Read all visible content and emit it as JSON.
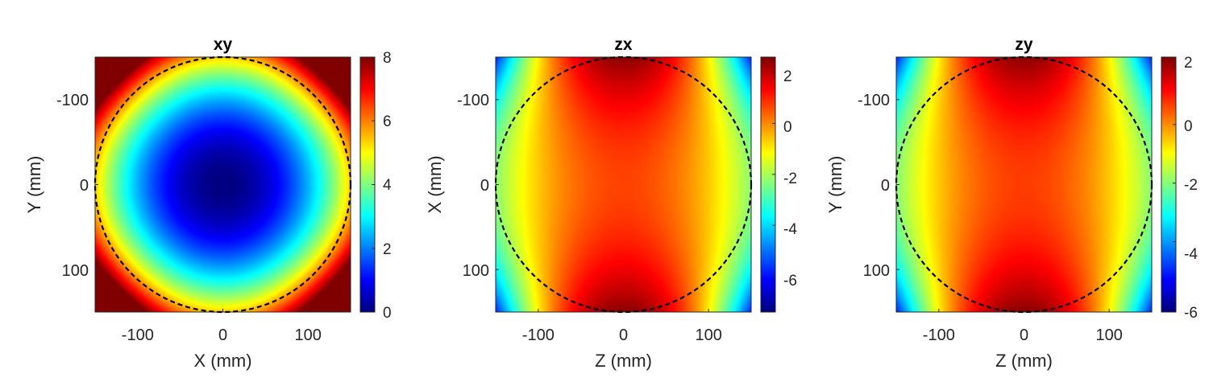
{
  "figure": {
    "background": "#ffffff",
    "colormap": "jet",
    "circle_style": {
      "color": "#000000",
      "dash": "dashed"
    }
  },
  "chart_data": [
    {
      "type": "heatmap",
      "title": "xy",
      "xlabel": "X (mm)",
      "ylabel": "Y (mm)",
      "xlim": [
        -150,
        150
      ],
      "ylim": [
        -150,
        150
      ],
      "y_reversed": true,
      "x_ticks": [
        -100,
        0,
        100
      ],
      "x_tick_labels": [
        "-100",
        "0",
        "100"
      ],
      "y_ticks": [
        -100,
        0,
        100
      ],
      "y_tick_labels": [
        "-100",
        "0",
        "100"
      ],
      "color_range": [
        0,
        8
      ],
      "colorbar_ticks": [
        0,
        2,
        4,
        6,
        8
      ],
      "colorbar_tick_labels": [
        "0",
        "2",
        "4",
        "6",
        "8"
      ],
      "circle": {
        "center": [
          0,
          0
        ],
        "radius": 150
      },
      "field": {
        "kind": "radial",
        "center_value": 0.0,
        "r_coef": 5.4,
        "corner_extra": 2.6
      },
      "samples": [
        {
          "x": 0,
          "y": 0,
          "value": 0.0
        },
        {
          "x": 100,
          "y": 0,
          "value": 2.4
        },
        {
          "x": 150,
          "y": 0,
          "value": 5.4
        },
        {
          "x": 150,
          "y": 150,
          "value": 8.0
        }
      ]
    },
    {
      "type": "heatmap",
      "title": "zx",
      "xlabel": "Z (mm)",
      "ylabel": "X (mm)",
      "xlim": [
        -150,
        150
      ],
      "ylim": [
        -150,
        150
      ],
      "y_reversed": true,
      "x_ticks": [
        -100,
        0,
        100
      ],
      "x_tick_labels": [
        "-100",
        "0",
        "100"
      ],
      "y_ticks": [
        -100,
        0,
        100
      ],
      "y_tick_labels": [
        "-100",
        "0",
        "100"
      ],
      "color_range": [
        -7.4,
        2.6
      ],
      "colorbar_ticks": [
        -6,
        -4,
        -2,
        0,
        2
      ],
      "colorbar_tick_labels": [
        "-6",
        "-4",
        "-2",
        "0",
        "2"
      ],
      "circle": {
        "center": [
          0,
          0
        ],
        "radius": 150
      },
      "field": {
        "kind": "axial",
        "center_value": 0.7,
        "h_coef": 3.0,
        "v_coef": 1.8,
        "corner_coef": 5.4
      },
      "samples": [
        {
          "x": 0,
          "y": 0,
          "value": 0.7
        },
        {
          "x": 0,
          "y": -150,
          "value": 2.5
        },
        {
          "x": -150,
          "y": 0,
          "value": -2.3
        },
        {
          "x": -150,
          "y": -150,
          "value": -7.0
        }
      ]
    },
    {
      "type": "heatmap",
      "title": "zy",
      "xlabel": "Z (mm)",
      "ylabel": "Y (mm)",
      "xlim": [
        -150,
        150
      ],
      "ylim": [
        -150,
        150
      ],
      "y_reversed": true,
      "x_ticks": [
        -100,
        0,
        100
      ],
      "x_tick_labels": [
        "-100",
        "0",
        "100"
      ],
      "y_ticks": [
        -100,
        0,
        100
      ],
      "y_tick_labels": [
        "-100",
        "0",
        "100"
      ],
      "color_range": [
        -6.4,
        2.3
      ],
      "colorbar_ticks": [
        -6,
        -4,
        -2,
        0,
        2
      ],
      "colorbar_tick_labels": [
        "-6",
        "-4",
        "-2",
        "0",
        "2"
      ],
      "circle": {
        "center": [
          0,
          0
        ],
        "radius": 150
      },
      "field": {
        "kind": "axial",
        "center_value": 0.7,
        "h_coef": 2.7,
        "v_coef": 1.5,
        "corner_coef": 4.6
      },
      "samples": [
        {
          "x": 0,
          "y": 0,
          "value": 0.7
        },
        {
          "x": 0,
          "y": 150,
          "value": 2.2
        },
        {
          "x": -150,
          "y": 0,
          "value": -2.0
        },
        {
          "x": 150,
          "y": 150,
          "value": -6.0
        }
      ]
    }
  ]
}
